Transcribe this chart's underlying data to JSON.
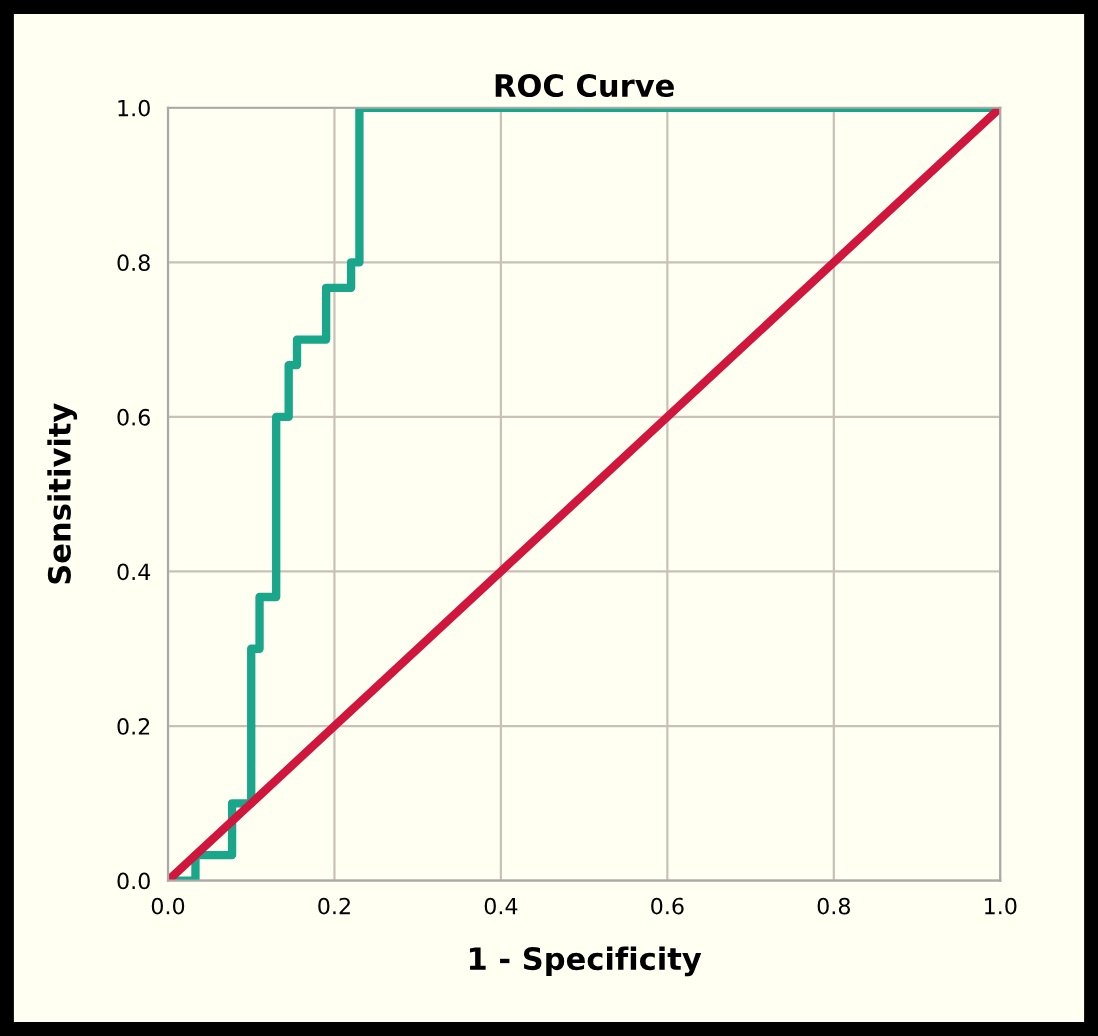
{
  "chart_data": {
    "type": "step",
    "title": "ROC Curve",
    "xlabel": "1 - Specificity",
    "ylabel": "Sensitivity",
    "series": [
      {
        "color": "#1aa68a",
        "x": [
          0,
          0.033,
          0.077,
          0.1,
          0.11,
          0.13,
          0.145,
          0.155,
          0.19,
          0.22,
          0.23,
          1.0
        ],
        "values": [
          0,
          0.033,
          0.1,
          0.3,
          0.367,
          0.6,
          0.667,
          0.7,
          0.767,
          0.8,
          1.0,
          1.0
        ]
      },
      {
        "type": "line",
        "color": "#d0163c",
        "x": [
          0,
          1.0
        ],
        "values": [
          0,
          1.0
        ]
      }
    ],
    "xlim": [
      0,
      1.0
    ],
    "ylim": [
      0,
      1.0
    ],
    "xticks": [
      {
        "value": 0,
        "label": "0.0"
      },
      0.2,
      0.4,
      0.6,
      0.8,
      {
        "value": 1.0,
        "label": "1.0"
      }
    ],
    "yticks": [
      {
        "value": 0,
        "label": "0.0"
      },
      0.2,
      0.4,
      0.6,
      0.8,
      {
        "value": 1.0,
        "label": "1.0"
      }
    ],
    "grid": true,
    "legend": false
  }
}
